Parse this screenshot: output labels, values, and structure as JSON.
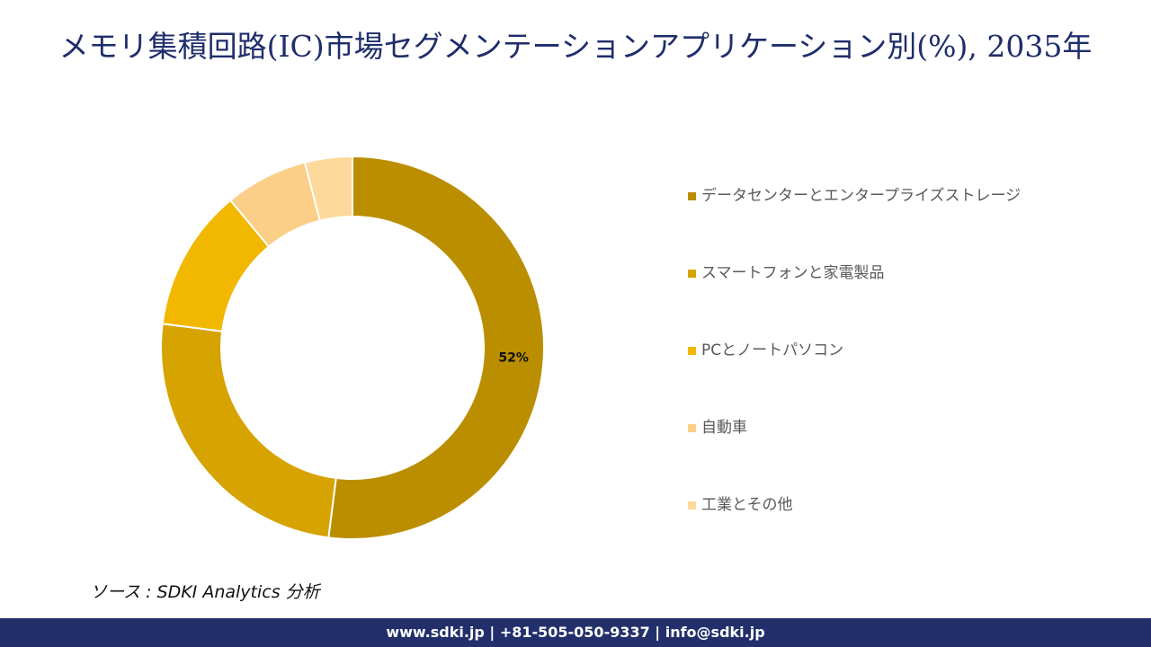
{
  "chart_data": {
    "type": "donut",
    "title": "メモリ集積回路(IC)市場セグメンテーションアプリケーション別(%), 2035年",
    "categories": [
      "データセンターとエンタープライズストレージ",
      "スマートフォンと家電製品",
      "PCとノートパソコン",
      "自動車",
      "工業とその他"
    ],
    "values": [
      52,
      25,
      12,
      7,
      4
    ],
    "value_labels": [
      "52%",
      null,
      null,
      null,
      null
    ],
    "colors": [
      "#bb8e00",
      "#d6a300",
      "#f2b800",
      "#fbcf88",
      "#fdd99b"
    ],
    "legend": "right"
  },
  "source": "ソース : SDKI Analytics 分析",
  "footer": "www.sdki.jp | +81-505-050-9337 | info@sdki.jp"
}
